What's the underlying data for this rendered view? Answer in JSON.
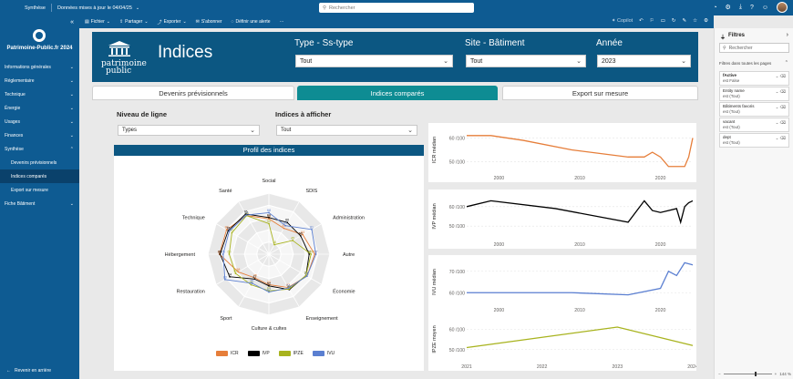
{
  "topbar": {
    "app": "Synthèse",
    "updated": "Données mises à jour le 04/04/25",
    "search_placeholder": "Rechercher"
  },
  "toolbar": {
    "file": "Fichier",
    "share": "Partager",
    "export": "Exporter",
    "subscribe": "S'abonner",
    "alert": "Définir une alerte",
    "more": "···",
    "copilot": "Copilot"
  },
  "sidebar": {
    "workspace": "Patrimoine-Public.fr 2024",
    "items": [
      {
        "label": "Informations générales"
      },
      {
        "label": "Réglementaire"
      },
      {
        "label": "Technique"
      },
      {
        "label": "Énergie"
      },
      {
        "label": "Usages"
      },
      {
        "label": "Finances"
      },
      {
        "label": "Synthèse"
      }
    ],
    "subitems": [
      {
        "label": "Devenirs prévisionnels"
      },
      {
        "label": "Indices comparés"
      },
      {
        "label": "Export sur mesure"
      }
    ],
    "last_item": "Fiche Bâtiment",
    "back": "Revenir en arrière"
  },
  "brand": {
    "line1": "patrimoine",
    "line2": "public"
  },
  "header": {
    "title": "Indices",
    "slicers": [
      {
        "label": "Type - Ss-type",
        "value": "Tout"
      },
      {
        "label": "Site - Bâtiment",
        "value": "Tout"
      },
      {
        "label": "Année",
        "value": "2023"
      }
    ]
  },
  "tabs": [
    "Devenirs prévisionnels",
    "Indices comparés",
    "Export sur mesure"
  ],
  "body": {
    "level_label": "Niveau de ligne",
    "level_value": "Types",
    "indices_label": "Indices à afficher",
    "indices_value": "Tout"
  },
  "colors": {
    "ICR": "#e67e3a",
    "IVP": "#000000",
    "IPZE": "#a8b31e",
    "IVU": "#5b7fd1"
  },
  "chart_data": [
    {
      "type": "radar",
      "title": "Profil des indices",
      "axes": [
        "Social",
        "SDIS",
        "Administration",
        "Autre",
        "Économie",
        "Enseignement",
        "Culture & cultes",
        "Sport",
        "Restauration",
        "Hébergement",
        "Technique",
        "Santé"
      ],
      "rlim": [
        0,
        100
      ],
      "legend": "bottom",
      "series": [
        {
          "name": "ICR",
          "values": [
            58,
            49,
            64,
            75,
            72,
            63,
            50,
            45,
            58,
            81,
            80,
            73
          ]
        },
        {
          "name": "IVP",
          "values": [
            60,
            60,
            60,
            66,
            70,
            67,
            52,
            47,
            74,
            80,
            77,
            76
          ]
        },
        {
          "name": "IPZE",
          "values": [
            50,
            18,
            45,
            69,
            70,
            66,
            60,
            58,
            63,
            65,
            70,
            73
          ]
        },
        {
          "name": "IVU",
          "values": [
            68,
            54,
            81,
            77,
            72,
            64,
            62,
            55,
            83,
            75,
            75,
            74
          ]
        }
      ]
    },
    {
      "type": "line",
      "ylabel": "ICR médian",
      "x_ticks": [
        "2000",
        "2010",
        "2020"
      ],
      "y_ticks": [
        "50 /100",
        "60 /100"
      ],
      "ylim": [
        46,
        64
      ],
      "xlim": [
        1996,
        2024
      ],
      "series": [
        {
          "name": "ICR",
          "x": [
            1996,
            1999,
            2003,
            2009,
            2016,
            2018,
            2019,
            2020,
            2021,
            2022,
            2023,
            2023.5,
            2024
          ],
          "values": [
            61,
            61,
            59,
            55,
            52,
            52,
            54,
            52,
            48,
            48,
            48,
            52,
            60
          ]
        }
      ]
    },
    {
      "type": "line",
      "ylabel": "IVP médian",
      "x_ticks": [
        "2000",
        "2010",
        "2020"
      ],
      "y_ticks": [
        "50 /100",
        "60 /100"
      ],
      "ylim": [
        44,
        66
      ],
      "xlim": [
        1996,
        2024
      ],
      "series": [
        {
          "name": "IVP",
          "x": [
            1996,
            1999,
            2007,
            2016,
            2018,
            2019,
            2020,
            2021,
            2022,
            2022.5,
            2023,
            2023.5,
            2024
          ],
          "values": [
            60,
            63,
            59,
            52,
            63,
            58,
            57,
            58,
            59,
            52,
            60,
            62,
            63
          ]
        }
      ]
    },
    {
      "type": "line",
      "ylabel": "IVU médian",
      "x_ticks": [
        "2000",
        "2010",
        "2020"
      ],
      "y_ticks": [
        "60 /100",
        "70 /100"
      ],
      "ylim": [
        55,
        75
      ],
      "xlim": [
        1996,
        2024
      ],
      "series": [
        {
          "name": "IVU",
          "x": [
            1996,
            2001,
            2009,
            2016,
            2020,
            2021,
            2022,
            2023,
            2024
          ],
          "values": [
            60,
            60,
            60,
            59,
            62,
            70,
            68,
            74,
            73
          ]
        }
      ]
    },
    {
      "type": "line",
      "ylabel": "IPZE moyen",
      "x_ticks": [
        "2021",
        "2022",
        "2023",
        "2024"
      ],
      "y_ticks": [
        "50 /100",
        "60 /100"
      ],
      "ylim": [
        45,
        65
      ],
      "xlim": [
        2021,
        2024
      ],
      "series": [
        {
          "name": "IPZE",
          "x": [
            2021,
            2023,
            2024
          ],
          "values": [
            51,
            61,
            52
          ]
        }
      ]
    }
  ],
  "filters": {
    "title": "Filtres",
    "search_placeholder": "Rechercher",
    "section": "Filtres dans toutes les pages",
    "cards": [
      {
        "name": "fActive",
        "value": "est False"
      },
      {
        "name": "Entity name",
        "value": "est (Tout)"
      },
      {
        "name": "Bâtiments favoris",
        "value": "est (Tout)"
      },
      {
        "name": "vacant",
        "value": "est (Tout)"
      },
      {
        "name": "dept",
        "value": "est (Tout)"
      }
    ],
    "zoom": "144 %"
  }
}
